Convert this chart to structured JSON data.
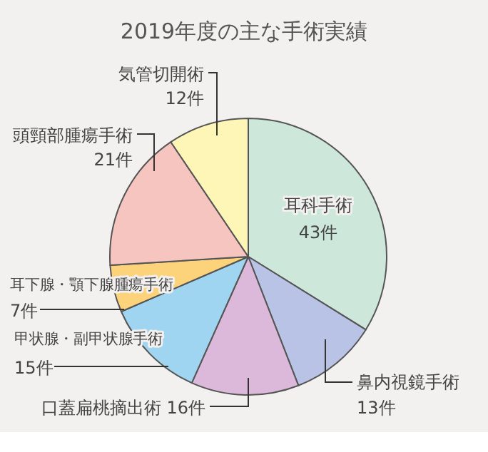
{
  "chart_data": {
    "type": "pie",
    "title": "2019年度の主な手術実績",
    "categories": [
      "耳科手術",
      "鼻内視鏡手術",
      "口蓋扁桃摘出術",
      "甲状腺・副甲状腺手術",
      "耳下腺・顎下腺腫瘍手術",
      "頭頸部腫瘍手術",
      "気管切開術"
    ],
    "values": [
      43,
      13,
      16,
      15,
      7,
      21,
      12
    ],
    "value_labels": [
      "43件",
      "13件",
      "16件",
      "15件",
      "7件",
      "21件",
      "12件"
    ],
    "colors": [
      "#cde8da",
      "#b8c3e5",
      "#dcb9da",
      "#9fd5f1",
      "#fcd37a",
      "#f6c5bf",
      "#fdf6b6"
    ]
  }
}
